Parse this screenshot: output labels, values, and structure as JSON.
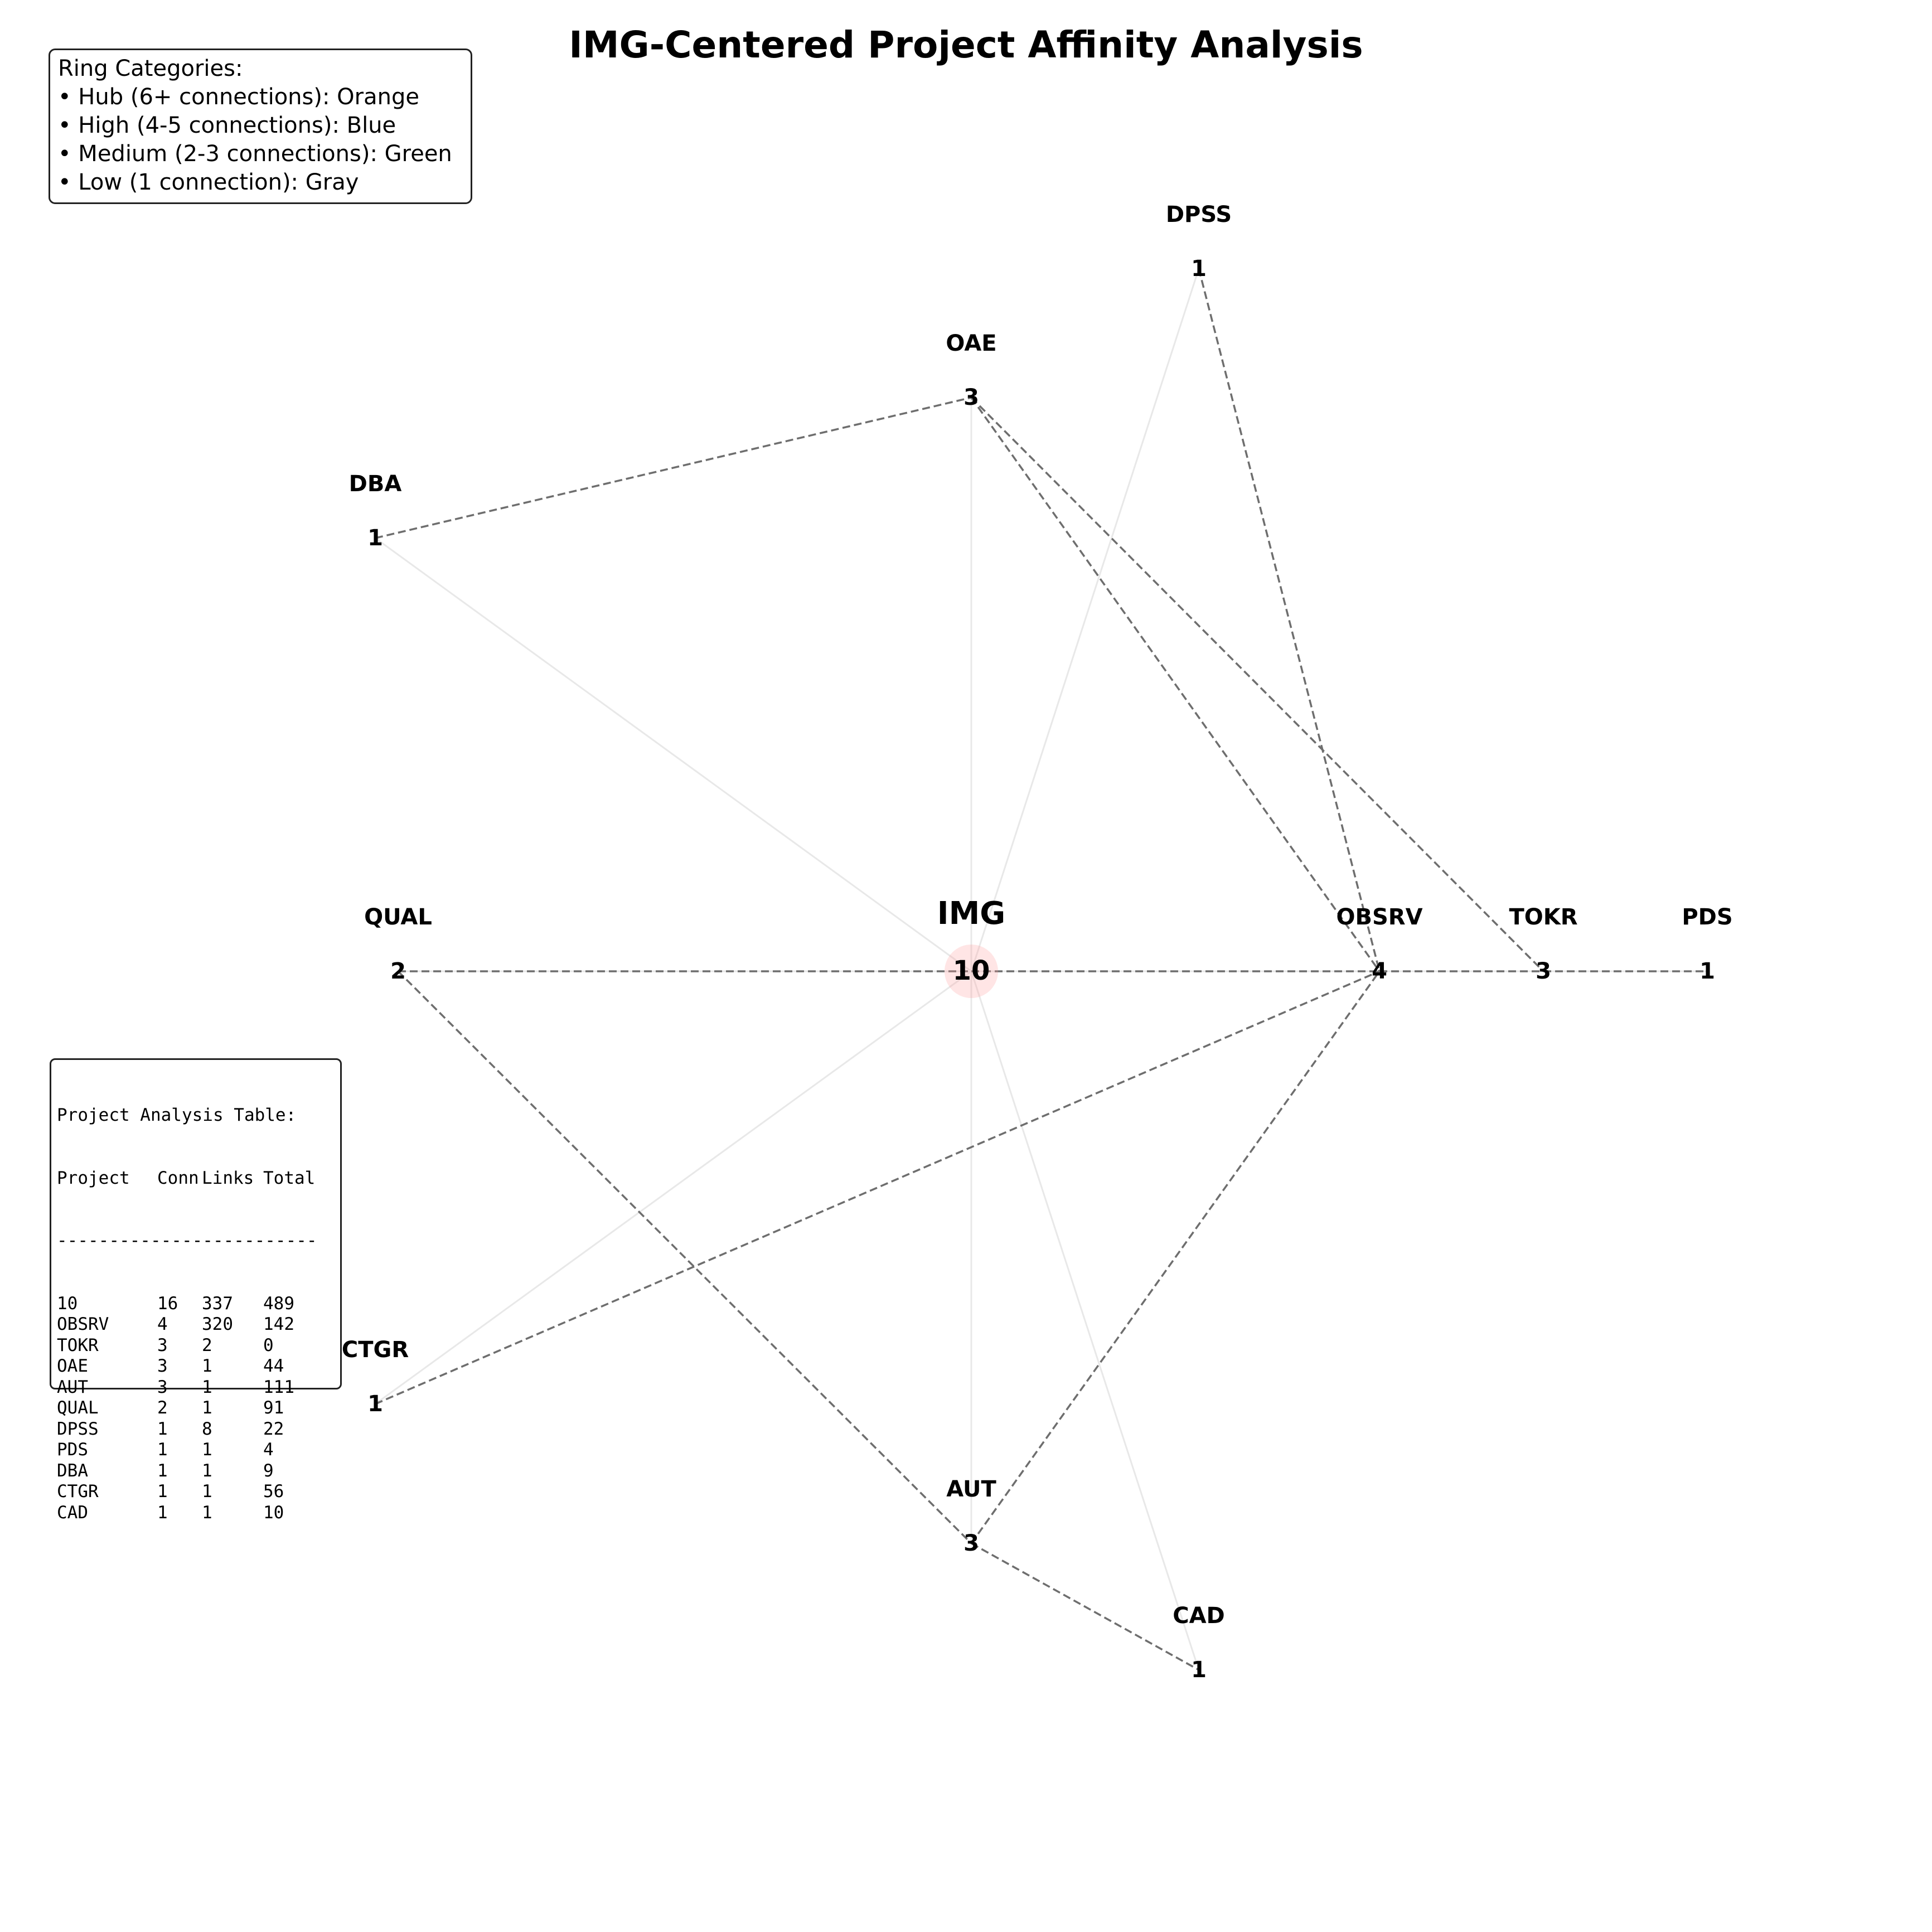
{
  "title": "IMG-Centered Project Affinity Analysis",
  "legend": {
    "heading": "Ring Categories:",
    "items": [
      "• Hub (6+ connections): Orange",
      "• High (4-5 connections): Blue",
      "• Medium (2-3 connections): Green",
      "• Low (1 connection): Gray"
    ]
  },
  "table": {
    "heading": "Project Analysis Table:",
    "columns": [
      "Project",
      "Conn",
      "Links",
      "Total"
    ],
    "separator": "-------------------------",
    "rows": [
      [
        "10",
        "16",
        "337",
        "489"
      ],
      [
        "OBSRV",
        "4",
        "320",
        "142"
      ],
      [
        "TOKR",
        "3",
        "2",
        "0"
      ],
      [
        "OAE",
        "3",
        "1",
        "44"
      ],
      [
        "AUT",
        "3",
        "1",
        "111"
      ],
      [
        "QUAL",
        "2",
        "1",
        "91"
      ],
      [
        "DPSS",
        "1",
        "8",
        "22"
      ],
      [
        "PDS",
        "1",
        "1",
        "4"
      ],
      [
        "DBA",
        "1",
        "1",
        "9"
      ],
      [
        "CTGR",
        "1",
        "1",
        "56"
      ],
      [
        "CAD",
        "1",
        "1",
        "10"
      ]
    ]
  },
  "center": {
    "label": "IMG",
    "value": "10",
    "color": "#ff9999"
  },
  "nodes": [
    {
      "id": "DPSS",
      "label": "DPSS",
      "value": "1"
    },
    {
      "id": "OAE",
      "label": "OAE",
      "value": "3"
    },
    {
      "id": "DBA",
      "label": "DBA",
      "value": "1"
    },
    {
      "id": "QUAL",
      "label": "QUAL",
      "value": "2"
    },
    {
      "id": "CTGR",
      "label": "CTGR",
      "value": "1"
    },
    {
      "id": "AUT",
      "label": "AUT",
      "value": "3"
    },
    {
      "id": "CAD",
      "label": "CAD",
      "value": "1"
    },
    {
      "id": "OBSRV",
      "label": "OBSRV",
      "value": "4"
    },
    {
      "id": "TOKR",
      "label": "TOKR",
      "value": "3"
    },
    {
      "id": "PDS",
      "label": "PDS",
      "value": "1"
    }
  ],
  "spokes": [
    "DPSS",
    "OAE",
    "DBA",
    "QUAL",
    "CTGR",
    "AUT",
    "CAD",
    "OBSRV",
    "TOKR",
    "PDS"
  ],
  "links": [
    [
      "DBA",
      "OAE"
    ],
    [
      "OAE",
      "OBSRV"
    ],
    [
      "OAE",
      "TOKR"
    ],
    [
      "DPSS",
      "OBSRV"
    ],
    [
      "QUAL",
      "IMG"
    ],
    [
      "QUAL",
      "AUT"
    ],
    [
      "IMG",
      "OBSRV"
    ],
    [
      "OBSRV",
      "TOKR"
    ],
    [
      "TOKR",
      "PDS"
    ],
    [
      "CTGR",
      "OBSRV"
    ],
    [
      "AUT",
      "OBSRV"
    ],
    [
      "AUT",
      "CAD"
    ]
  ],
  "colors": {
    "spoke": "#e8e8e8",
    "link": "#6e6e6e",
    "text": "#000000"
  }
}
